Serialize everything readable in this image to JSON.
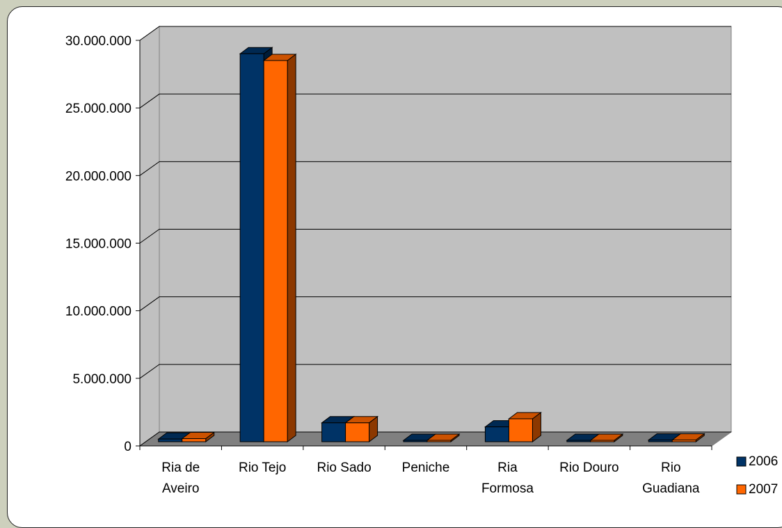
{
  "chart_data": {
    "type": "bar",
    "title": "",
    "xlabel": "",
    "ylabel": "",
    "ylim": [
      0,
      30000000
    ],
    "yticks": [
      0,
      5000000,
      10000000,
      15000000,
      20000000,
      25000000,
      30000000
    ],
    "ytick_labels": [
      "0",
      "5.000.000",
      "10.000.000",
      "15.000.000",
      "20.000.000",
      "25.000.000",
      "30.000.000"
    ],
    "categories": [
      [
        "Ria de",
        "Aveiro"
      ],
      [
        "Rio Tejo"
      ],
      [
        "Rio Sado"
      ],
      [
        "Peniche"
      ],
      [
        "Ria",
        "Formosa"
      ],
      [
        "Rio Douro"
      ],
      [
        "Rio",
        "Guadiana"
      ]
    ],
    "series": [
      {
        "name": "2006",
        "color": "#003366",
        "values": [
          200000,
          28700000,
          1400000,
          20000,
          1100000,
          60000,
          130000
        ]
      },
      {
        "name": "2007",
        "color": "#ff6600",
        "values": [
          230000,
          28200000,
          1400000,
          20000,
          1700000,
          60000,
          130000
        ]
      }
    ],
    "grid": true,
    "legend_position": "right",
    "style": "3d-clustered-bar"
  }
}
